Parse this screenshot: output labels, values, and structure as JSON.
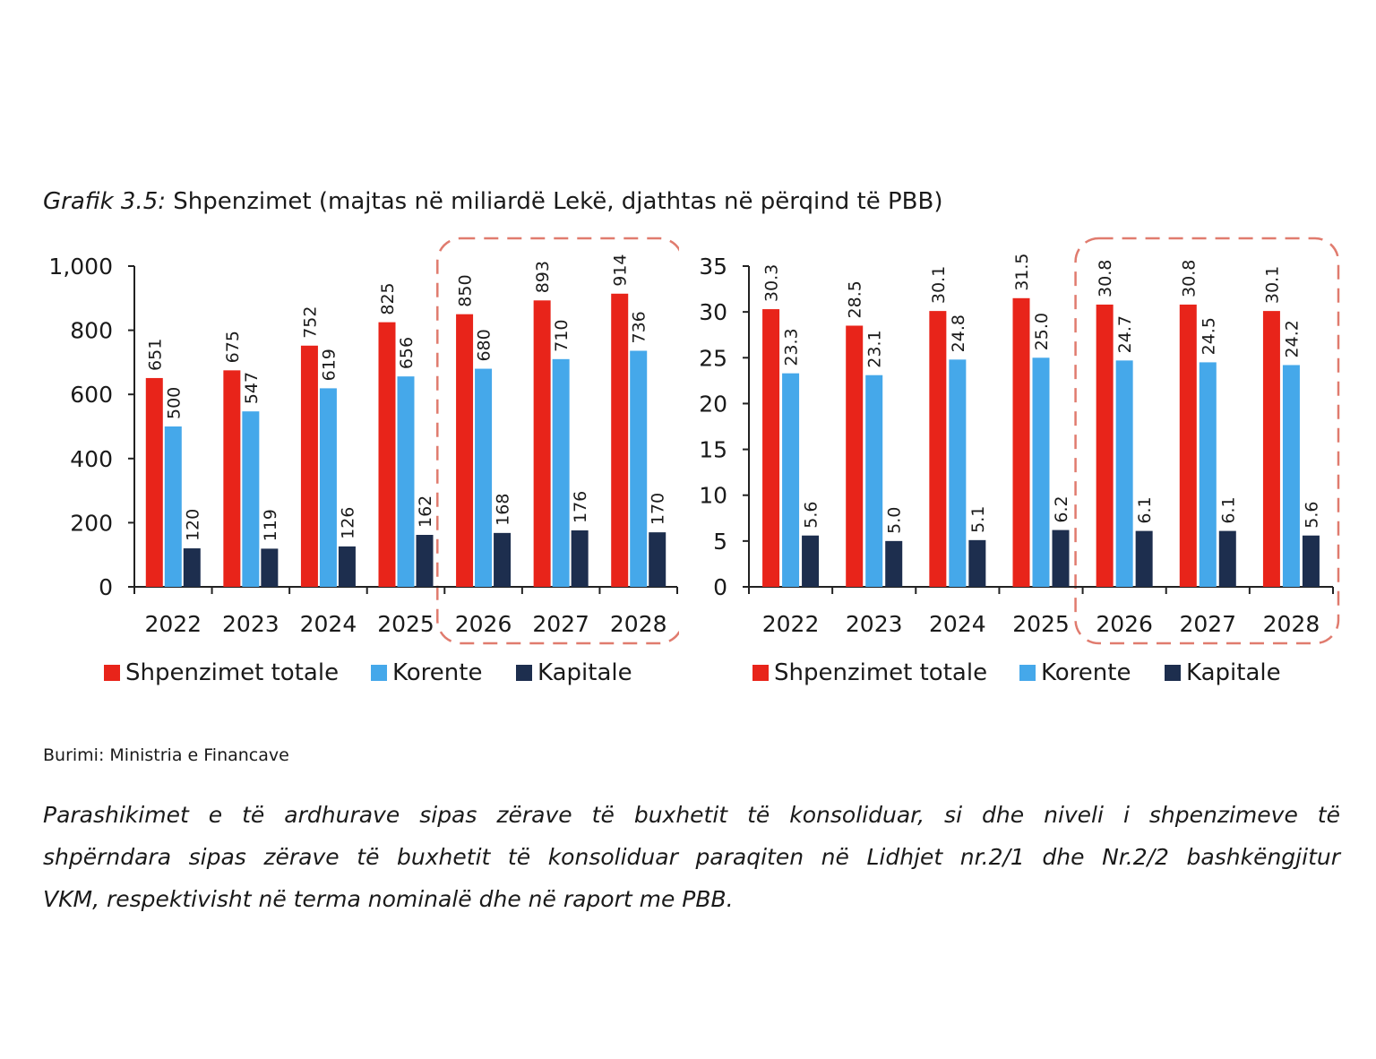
{
  "figure": {
    "label": "Grafik 3.5:",
    "title": "Shpenzimet (majtas në miliardë Lekë, djathtas në përqind të PBB)"
  },
  "source": "Burimi: Ministria e Financave",
  "paragraph": {
    "line1": "Parashikimet e të ardhurave sipas zërave të buxhetit të konsoliduar, si dhe niveli i shpenzimeve të",
    "line2": "shpërndara sipas zërave të buxhetit të konsoliduar paraqiten në Lidhjet nr.2/1 dhe Nr.2/2 bashkëngjitur",
    "line3": "VKM, respektivisht në terma nominalë dhe në raport me PBB."
  },
  "colors": {
    "total": "#e8241a",
    "current": "#45a8ea",
    "capital": "#1d2e4e",
    "highlight": "#e07b6e"
  },
  "chart_data": [
    {
      "type": "bar",
      "categories": [
        "2022",
        "2023",
        "2024",
        "2025",
        "2026",
        "2027",
        "2028"
      ],
      "series": [
        {
          "name": "Shpenzimet totale",
          "values": [
            651,
            675,
            752,
            825,
            850,
            893,
            914
          ]
        },
        {
          "name": "Korente",
          "values": [
            500,
            547,
            619,
            656,
            680,
            710,
            736
          ]
        },
        {
          "name": "Kapitale",
          "values": [
            120,
            119,
            126,
            162,
            168,
            176,
            170
          ]
        }
      ],
      "data_labels": [
        [
          "651",
          "675",
          "752",
          "825",
          "850",
          "893",
          "914"
        ],
        [
          "500",
          "547",
          "619",
          "656",
          "680",
          "710",
          "736"
        ],
        [
          "120",
          "119",
          "126",
          "162",
          "168",
          "176",
          "170"
        ]
      ],
      "ylim": [
        0,
        1000
      ],
      "yticks": [
        0,
        200,
        400,
        600,
        800,
        1000
      ],
      "ytick_labels": [
        "0",
        "200",
        "400",
        "600",
        "800",
        "1,000"
      ],
      "highlight_categories": [
        "2026",
        "2027",
        "2028"
      ],
      "legend": "bottom",
      "grid": false
    },
    {
      "type": "bar",
      "categories": [
        "2022",
        "2023",
        "2024",
        "2025",
        "2026",
        "2027",
        "2028"
      ],
      "series": [
        {
          "name": "Shpenzimet totale",
          "values": [
            30.3,
            28.5,
            30.1,
            31.5,
            30.8,
            30.8,
            30.1
          ]
        },
        {
          "name": "Korente",
          "values": [
            23.3,
            23.1,
            24.8,
            25.0,
            24.7,
            24.5,
            24.2
          ]
        },
        {
          "name": "Kapitale",
          "values": [
            5.6,
            5.0,
            5.1,
            6.2,
            6.1,
            6.1,
            5.6
          ]
        }
      ],
      "data_labels": [
        [
          "30.3",
          "28.5",
          "30.1",
          "31.5",
          "30.8",
          "30.8",
          "30.1"
        ],
        [
          "23.3",
          "23.1",
          "24.8",
          "25.0",
          "24.7",
          "24.5",
          "24.2"
        ],
        [
          "5.6",
          "5.0",
          "5.1",
          "6.2",
          "6.1",
          "6.1",
          "5.6"
        ]
      ],
      "ylim": [
        0,
        35
      ],
      "yticks": [
        0,
        5,
        10,
        15,
        20,
        25,
        30,
        35
      ],
      "ytick_labels": [
        "0",
        "5",
        "10",
        "15",
        "20",
        "25",
        "30",
        "35"
      ],
      "highlight_categories": [
        "2026",
        "2027",
        "2028"
      ],
      "legend": "bottom",
      "grid": false
    }
  ]
}
